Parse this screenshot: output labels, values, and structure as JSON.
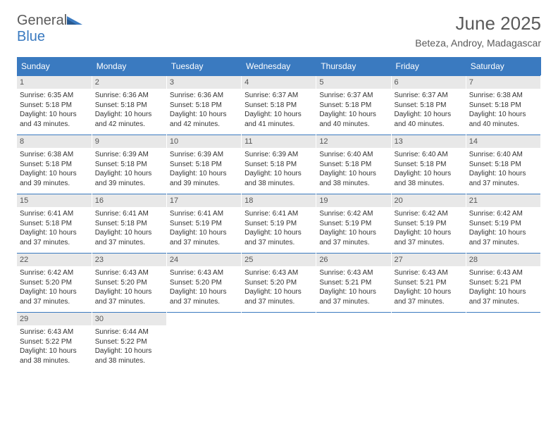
{
  "logo": {
    "general": "General",
    "blue": "Blue"
  },
  "title": {
    "month": "June 2025",
    "location": "Beteza, Androy, Madagascar"
  },
  "colors": {
    "header_bg": "#3a7ac0",
    "header_text": "#ffffff",
    "daynum_bg": "#e8e8e8",
    "text": "#333333",
    "title_text": "#5a5a5a",
    "logo_gray": "#5a5a5a",
    "logo_blue": "#3a7ac0"
  },
  "weekdays": [
    "Sunday",
    "Monday",
    "Tuesday",
    "Wednesday",
    "Thursday",
    "Friday",
    "Saturday"
  ],
  "days": [
    {
      "n": "1",
      "sr": "6:35 AM",
      "ss": "5:18 PM",
      "dl": "10 hours and 43 minutes."
    },
    {
      "n": "2",
      "sr": "6:36 AM",
      "ss": "5:18 PM",
      "dl": "10 hours and 42 minutes."
    },
    {
      "n": "3",
      "sr": "6:36 AM",
      "ss": "5:18 PM",
      "dl": "10 hours and 42 minutes."
    },
    {
      "n": "4",
      "sr": "6:37 AM",
      "ss": "5:18 PM",
      "dl": "10 hours and 41 minutes."
    },
    {
      "n": "5",
      "sr": "6:37 AM",
      "ss": "5:18 PM",
      "dl": "10 hours and 40 minutes."
    },
    {
      "n": "6",
      "sr": "6:37 AM",
      "ss": "5:18 PM",
      "dl": "10 hours and 40 minutes."
    },
    {
      "n": "7",
      "sr": "6:38 AM",
      "ss": "5:18 PM",
      "dl": "10 hours and 40 minutes."
    },
    {
      "n": "8",
      "sr": "6:38 AM",
      "ss": "5:18 PM",
      "dl": "10 hours and 39 minutes."
    },
    {
      "n": "9",
      "sr": "6:39 AM",
      "ss": "5:18 PM",
      "dl": "10 hours and 39 minutes."
    },
    {
      "n": "10",
      "sr": "6:39 AM",
      "ss": "5:18 PM",
      "dl": "10 hours and 39 minutes."
    },
    {
      "n": "11",
      "sr": "6:39 AM",
      "ss": "5:18 PM",
      "dl": "10 hours and 38 minutes."
    },
    {
      "n": "12",
      "sr": "6:40 AM",
      "ss": "5:18 PM",
      "dl": "10 hours and 38 minutes."
    },
    {
      "n": "13",
      "sr": "6:40 AM",
      "ss": "5:18 PM",
      "dl": "10 hours and 38 minutes."
    },
    {
      "n": "14",
      "sr": "6:40 AM",
      "ss": "5:18 PM",
      "dl": "10 hours and 37 minutes."
    },
    {
      "n": "15",
      "sr": "6:41 AM",
      "ss": "5:18 PM",
      "dl": "10 hours and 37 minutes."
    },
    {
      "n": "16",
      "sr": "6:41 AM",
      "ss": "5:18 PM",
      "dl": "10 hours and 37 minutes."
    },
    {
      "n": "17",
      "sr": "6:41 AM",
      "ss": "5:19 PM",
      "dl": "10 hours and 37 minutes."
    },
    {
      "n": "18",
      "sr": "6:41 AM",
      "ss": "5:19 PM",
      "dl": "10 hours and 37 minutes."
    },
    {
      "n": "19",
      "sr": "6:42 AM",
      "ss": "5:19 PM",
      "dl": "10 hours and 37 minutes."
    },
    {
      "n": "20",
      "sr": "6:42 AM",
      "ss": "5:19 PM",
      "dl": "10 hours and 37 minutes."
    },
    {
      "n": "21",
      "sr": "6:42 AM",
      "ss": "5:19 PM",
      "dl": "10 hours and 37 minutes."
    },
    {
      "n": "22",
      "sr": "6:42 AM",
      "ss": "5:20 PM",
      "dl": "10 hours and 37 minutes."
    },
    {
      "n": "23",
      "sr": "6:43 AM",
      "ss": "5:20 PM",
      "dl": "10 hours and 37 minutes."
    },
    {
      "n": "24",
      "sr": "6:43 AM",
      "ss": "5:20 PM",
      "dl": "10 hours and 37 minutes."
    },
    {
      "n": "25",
      "sr": "6:43 AM",
      "ss": "5:20 PM",
      "dl": "10 hours and 37 minutes."
    },
    {
      "n": "26",
      "sr": "6:43 AM",
      "ss": "5:21 PM",
      "dl": "10 hours and 37 minutes."
    },
    {
      "n": "27",
      "sr": "6:43 AM",
      "ss": "5:21 PM",
      "dl": "10 hours and 37 minutes."
    },
    {
      "n": "28",
      "sr": "6:43 AM",
      "ss": "5:21 PM",
      "dl": "10 hours and 37 minutes."
    },
    {
      "n": "29",
      "sr": "6:43 AM",
      "ss": "5:22 PM",
      "dl": "10 hours and 38 minutes."
    },
    {
      "n": "30",
      "sr": "6:44 AM",
      "ss": "5:22 PM",
      "dl": "10 hours and 38 minutes."
    }
  ],
  "labels": {
    "sunrise": "Sunrise:",
    "sunset": "Sunset:",
    "daylight": "Daylight:"
  }
}
